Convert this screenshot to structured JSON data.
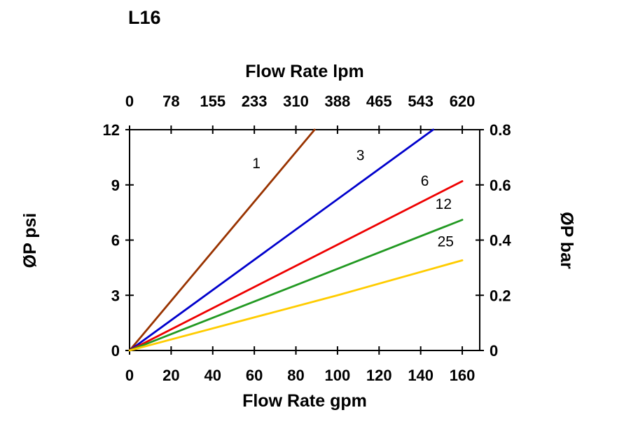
{
  "chart_data": {
    "type": "line",
    "title": "L16",
    "top_axis": {
      "label": "Flow Rate lpm",
      "ticks": [
        "0",
        "78",
        "155",
        "233",
        "310",
        "388",
        "465",
        "543",
        "620"
      ]
    },
    "bottom_axis": {
      "label": "Flow Rate gpm",
      "ticks": [
        0,
        20,
        40,
        60,
        80,
        100,
        120,
        140,
        160
      ]
    },
    "left_axis": {
      "label": "ØP psi",
      "ticks": [
        0,
        3,
        6,
        9,
        12
      ]
    },
    "right_axis": {
      "label": "ØP bar",
      "ticks": [
        "0",
        "0.2",
        "0.4",
        "0.6",
        "0.8"
      ]
    },
    "xlim": [
      0,
      168.4
    ],
    "ylim": [
      0,
      12
    ],
    "grid": false,
    "legend": "inline-labels",
    "series": [
      {
        "name": "1",
        "color": "#993300",
        "points": [
          [
            0,
            0
          ],
          [
            89,
            12
          ]
        ],
        "label_at": [
          61,
          9.9
        ]
      },
      {
        "name": "3",
        "color": "#0000CC",
        "points": [
          [
            0,
            0
          ],
          [
            146,
            12
          ]
        ],
        "label_at": [
          111,
          10.35
        ]
      },
      {
        "name": "6",
        "color": "#EE0000",
        "points": [
          [
            0,
            0
          ],
          [
            160,
            9.2
          ]
        ],
        "label_at": [
          142,
          8.95
        ]
      },
      {
        "name": "12",
        "color": "#229922",
        "points": [
          [
            0,
            0
          ],
          [
            160,
            7.1
          ]
        ],
        "label_at": [
          151,
          7.7
        ]
      },
      {
        "name": "25",
        "color": "#FFCC00",
        "points": [
          [
            0,
            0
          ],
          [
            100,
            3.0
          ],
          [
            160,
            4.9
          ]
        ],
        "label_at": [
          152,
          5.65
        ]
      }
    ]
  }
}
